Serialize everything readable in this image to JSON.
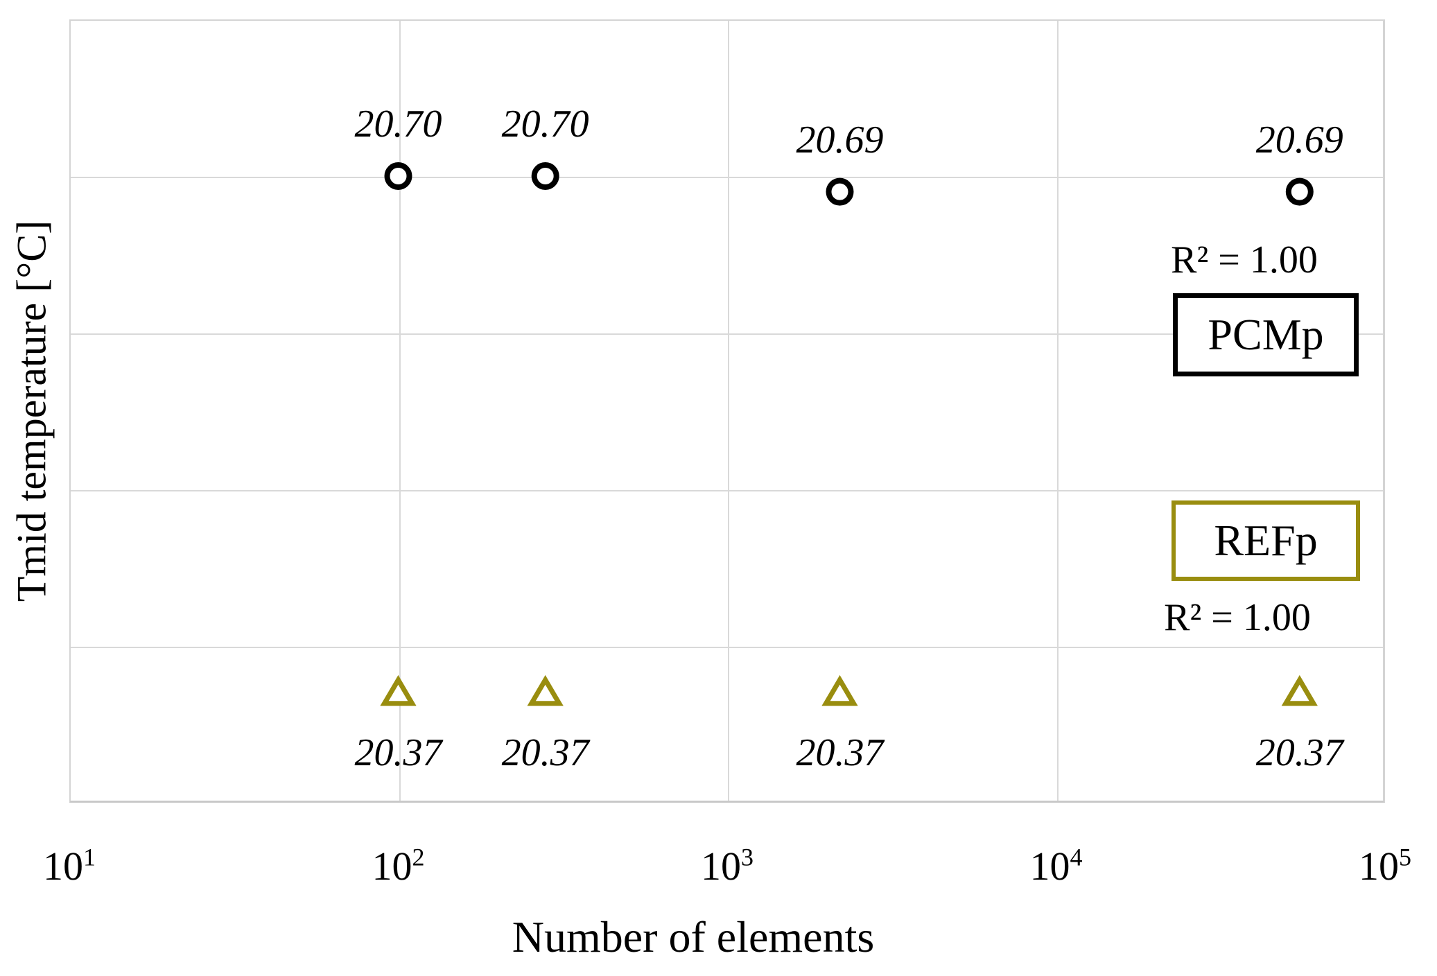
{
  "colors": {
    "pcmp_series": "#000000",
    "refp_series": "#998d0f",
    "gridline": "#d9d9d9",
    "background": "#ffffff"
  },
  "chart_data": {
    "type": "scatter",
    "title": "",
    "xlabel": "Number of elements",
    "ylabel": "Tmid temperature [°C]",
    "x_scale": "log",
    "xlim": [
      10,
      100000
    ],
    "ylim": [
      20.3,
      20.8
    ],
    "y_gridline_step": 0.1,
    "y_tick_labels_visible": false,
    "grid": true,
    "x_ticks": [
      {
        "base": "10",
        "exp": "1"
      },
      {
        "base": "10",
        "exp": "2"
      },
      {
        "base": "10",
        "exp": "3"
      },
      {
        "base": "10",
        "exp": "4"
      },
      {
        "base": "10",
        "exp": "5"
      }
    ],
    "series": [
      {
        "name": "PCMp",
        "marker": "circle",
        "color": "#000000",
        "label_position": "above",
        "r_squared_label": "R² = 1.00",
        "points": [
          {
            "x": 100,
            "y": 20.7,
            "label": "20.70"
          },
          {
            "x": 280,
            "y": 20.7,
            "label": "20.70"
          },
          {
            "x": 2200,
            "y": 20.69,
            "label": "20.69"
          },
          {
            "x": 55000,
            "y": 20.69,
            "label": "20.69"
          }
        ]
      },
      {
        "name": "REFp",
        "marker": "triangle",
        "color": "#998d0f",
        "label_position": "below",
        "r_squared_label": "R² = 1.00",
        "points": [
          {
            "x": 100,
            "y": 20.37,
            "label": "20.37"
          },
          {
            "x": 280,
            "y": 20.37,
            "label": "20.37"
          },
          {
            "x": 2200,
            "y": 20.37,
            "label": "20.37"
          },
          {
            "x": 55000,
            "y": 20.37,
            "label": "20.37"
          }
        ]
      }
    ],
    "legend": [
      {
        "label": "PCMp",
        "border_color": "#000000"
      },
      {
        "label": "REFp",
        "border_color": "#998d0f"
      }
    ],
    "legend_position": "right-inside"
  }
}
